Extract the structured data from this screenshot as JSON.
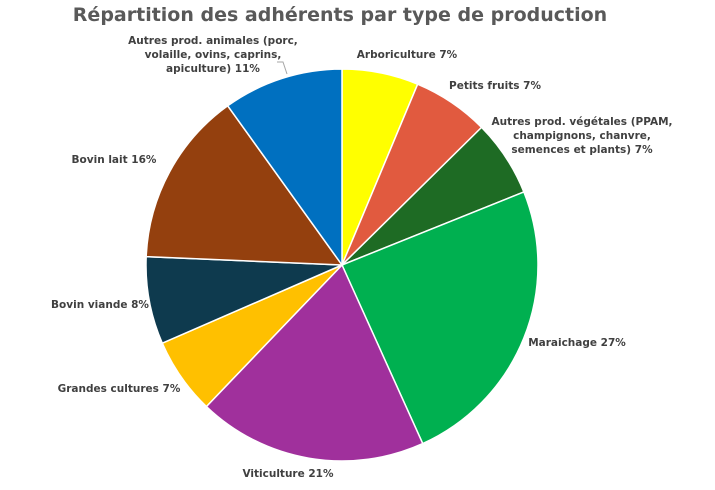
{
  "chart_data": {
    "type": "pie",
    "title": "Répartition des adhérents par type de production",
    "start_angle_deg": 0,
    "direction": "clockwise",
    "slices": [
      {
        "label": "Arboriculture 7%",
        "value": 7,
        "color": "#FFFF00"
      },
      {
        "label": "Petits fruits 7%",
        "value": 7,
        "color": "#E15A3F"
      },
      {
        "label": "Autres prod. végétales (PPAM, champignons, chanvre, semences et plants) 7%",
        "value": 7,
        "color": "#1E6B24"
      },
      {
        "label": "Maraichage 27%",
        "value": 27,
        "color": "#00B050"
      },
      {
        "label": "Viticulture 21%",
        "value": 21,
        "color": "#A0309C"
      },
      {
        "label": "Grandes cultures 7%",
        "value": 7,
        "color": "#FFC000"
      },
      {
        "label": "Bovin viande 8%",
        "value": 8,
        "color": "#0E3A4E"
      },
      {
        "label": "Bovin lait 16%",
        "value": 16,
        "color": "#94400E"
      },
      {
        "label": "Autres prod. animales (porc, volaille, ovins, caprins, apiculture) 11%",
        "value": 11,
        "color": "#0070C0"
      }
    ]
  }
}
